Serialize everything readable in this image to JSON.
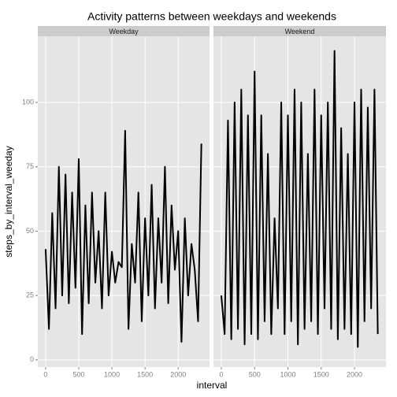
{
  "chart_data": {
    "type": "line",
    "title": "Activity patterns between weekdays and weekends",
    "xlabel": "interval",
    "ylabel": "steps_by_interval_weeday",
    "x": [
      0,
      50,
      100,
      150,
      200,
      250,
      300,
      350,
      400,
      450,
      500,
      550,
      600,
      650,
      700,
      750,
      800,
      850,
      900,
      950,
      1000,
      1050,
      1100,
      1150,
      1200,
      1250,
      1300,
      1350,
      1400,
      1450,
      1500,
      1550,
      1600,
      1650,
      1700,
      1750,
      1800,
      1850,
      1900,
      1950,
      2000,
      2050,
      2100,
      2150,
      2200,
      2250,
      2300,
      2350
    ],
    "series": [
      {
        "name": "Weekday",
        "color": "#000000",
        "values": [
          43,
          12,
          57,
          20,
          75,
          25,
          72,
          22,
          65,
          28,
          78,
          10,
          60,
          22,
          65,
          30,
          50,
          20,
          65,
          25,
          42,
          30,
          38,
          36,
          89,
          12,
          45,
          30,
          65,
          15,
          55,
          25,
          68,
          20,
          55,
          30,
          75,
          22,
          60,
          35,
          50,
          7,
          55,
          25,
          45,
          35,
          15,
          84
        ]
      },
      {
        "name": "Weekend",
        "color": "#000000",
        "values": [
          25,
          10,
          93,
          8,
          100,
          12,
          105,
          6,
          95,
          10,
          112,
          8,
          95,
          15,
          80,
          10,
          55,
          20,
          100,
          10,
          95,
          15,
          105,
          6,
          100,
          12,
          80,
          15,
          105,
          10,
          95,
          20,
          100,
          12,
          120,
          8,
          90,
          12,
          80,
          10,
          100,
          5,
          105,
          15,
          98,
          20,
          105,
          10
        ]
      }
    ],
    "xlim": [
      -117.75,
      2472.75
    ],
    "ylim": [
      -2.8,
      125.7
    ],
    "xticks": [
      0,
      500,
      1000,
      1500,
      2000
    ],
    "yticks": [
      0,
      25,
      50,
      75,
      100
    ],
    "grid": true
  }
}
